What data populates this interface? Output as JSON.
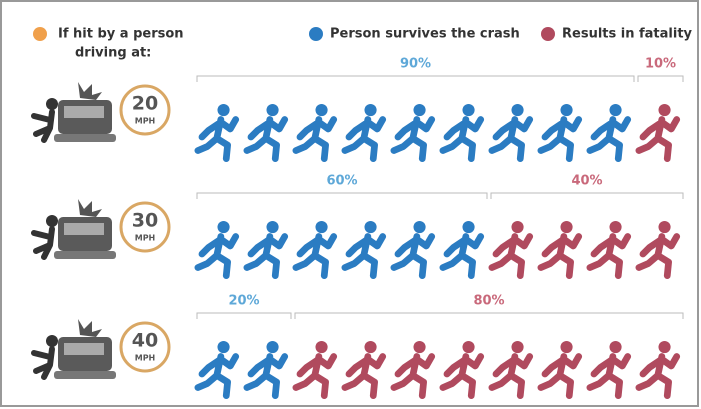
{
  "chart_data": {
    "type": "pictograph",
    "legend_title_lines": [
      "If hit by a person",
      "driving at:"
    ],
    "legend_title_color": "#f0a04b",
    "speed_unit": "MPH",
    "categories": [
      "20",
      "30",
      "40"
    ],
    "series": [
      {
        "name": "Person survives the crash",
        "color": "#2b7cc2",
        "label_color": "#5ea8d8",
        "values": [
          90,
          60,
          20
        ],
        "value_labels": [
          "90%",
          "60%",
          "20%"
        ]
      },
      {
        "name": "Results in fatality",
        "color": "#b04a5e",
        "label_color": "#c9697b",
        "values": [
          10,
          40,
          80
        ],
        "value_labels": [
          "10%",
          "40%",
          "80%"
        ]
      }
    ]
  }
}
